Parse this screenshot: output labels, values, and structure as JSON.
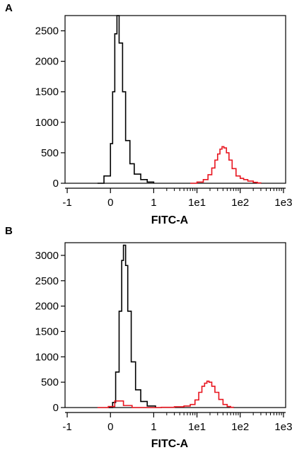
{
  "panels": [
    {
      "letter": "A"
    },
    {
      "letter": "B"
    }
  ],
  "chart_data": [
    {
      "type": "histogram",
      "panel": "A",
      "xlabel": "FITC-A",
      "ylabel": "",
      "x_scale": "log (biexponential)",
      "x_ticks": [
        "-1",
        "0",
        "1",
        "1e1",
        "1e2",
        "1e3"
      ],
      "y_ticks": [
        0,
        500,
        1000,
        1500,
        2000,
        2500
      ],
      "ylim": [
        0,
        2750
      ],
      "series": [
        {
          "color": "#000000",
          "x": [
            -0.3,
            -0.15,
            0,
            0.05,
            0.1,
            0.15,
            0.2,
            0.28,
            0.35,
            0.45,
            0.55,
            0.7,
            0.85,
            1.0
          ],
          "y": [
            0,
            120,
            650,
            1500,
            2450,
            2750,
            2300,
            1500,
            700,
            320,
            150,
            60,
            20,
            0
          ]
        },
        {
          "color": "#e8141e",
          "x": [
            7,
            10,
            14,
            18,
            22,
            26,
            30,
            34,
            38,
            42,
            48,
            55,
            65,
            80,
            100,
            120,
            150,
            200,
            250,
            300
          ],
          "y": [
            0,
            20,
            60,
            140,
            250,
            380,
            480,
            560,
            600,
            580,
            500,
            380,
            240,
            120,
            80,
            60,
            35,
            15,
            5,
            0
          ]
        }
      ]
    },
    {
      "type": "histogram",
      "panel": "B",
      "xlabel": "FITC-A",
      "ylabel": "",
      "x_scale": "log (biexponential)",
      "x_ticks": [
        "-1",
        "0",
        "1",
        "1e1",
        "1e2",
        "1e3"
      ],
      "y_ticks": [
        0,
        500,
        1000,
        1500,
        2000,
        2500,
        3000
      ],
      "ylim": [
        0,
        3250
      ],
      "series": [
        {
          "color": "#000000",
          "x": [
            -0.05,
            0.05,
            0.12,
            0.2,
            0.26,
            0.3,
            0.35,
            0.4,
            0.48,
            0.58,
            0.7,
            0.85,
            1.1
          ],
          "y": [
            0,
            100,
            700,
            1900,
            2900,
            3200,
            2800,
            1900,
            900,
            350,
            120,
            30,
            0
          ]
        },
        {
          "color": "#e8141e",
          "x": [
            -0.3,
            -0.05,
            0.1,
            0.3,
            0.5,
            1.0,
            1.5,
            3,
            5,
            7,
            9,
            11,
            13,
            15,
            17,
            19,
            22,
            26,
            32,
            40,
            50,
            60,
            70
          ],
          "y": [
            0,
            20,
            130,
            40,
            0,
            0,
            5,
            15,
            30,
            60,
            150,
            300,
            420,
            480,
            520,
            500,
            420,
            300,
            160,
            60,
            20,
            5,
            0
          ]
        }
      ]
    }
  ]
}
